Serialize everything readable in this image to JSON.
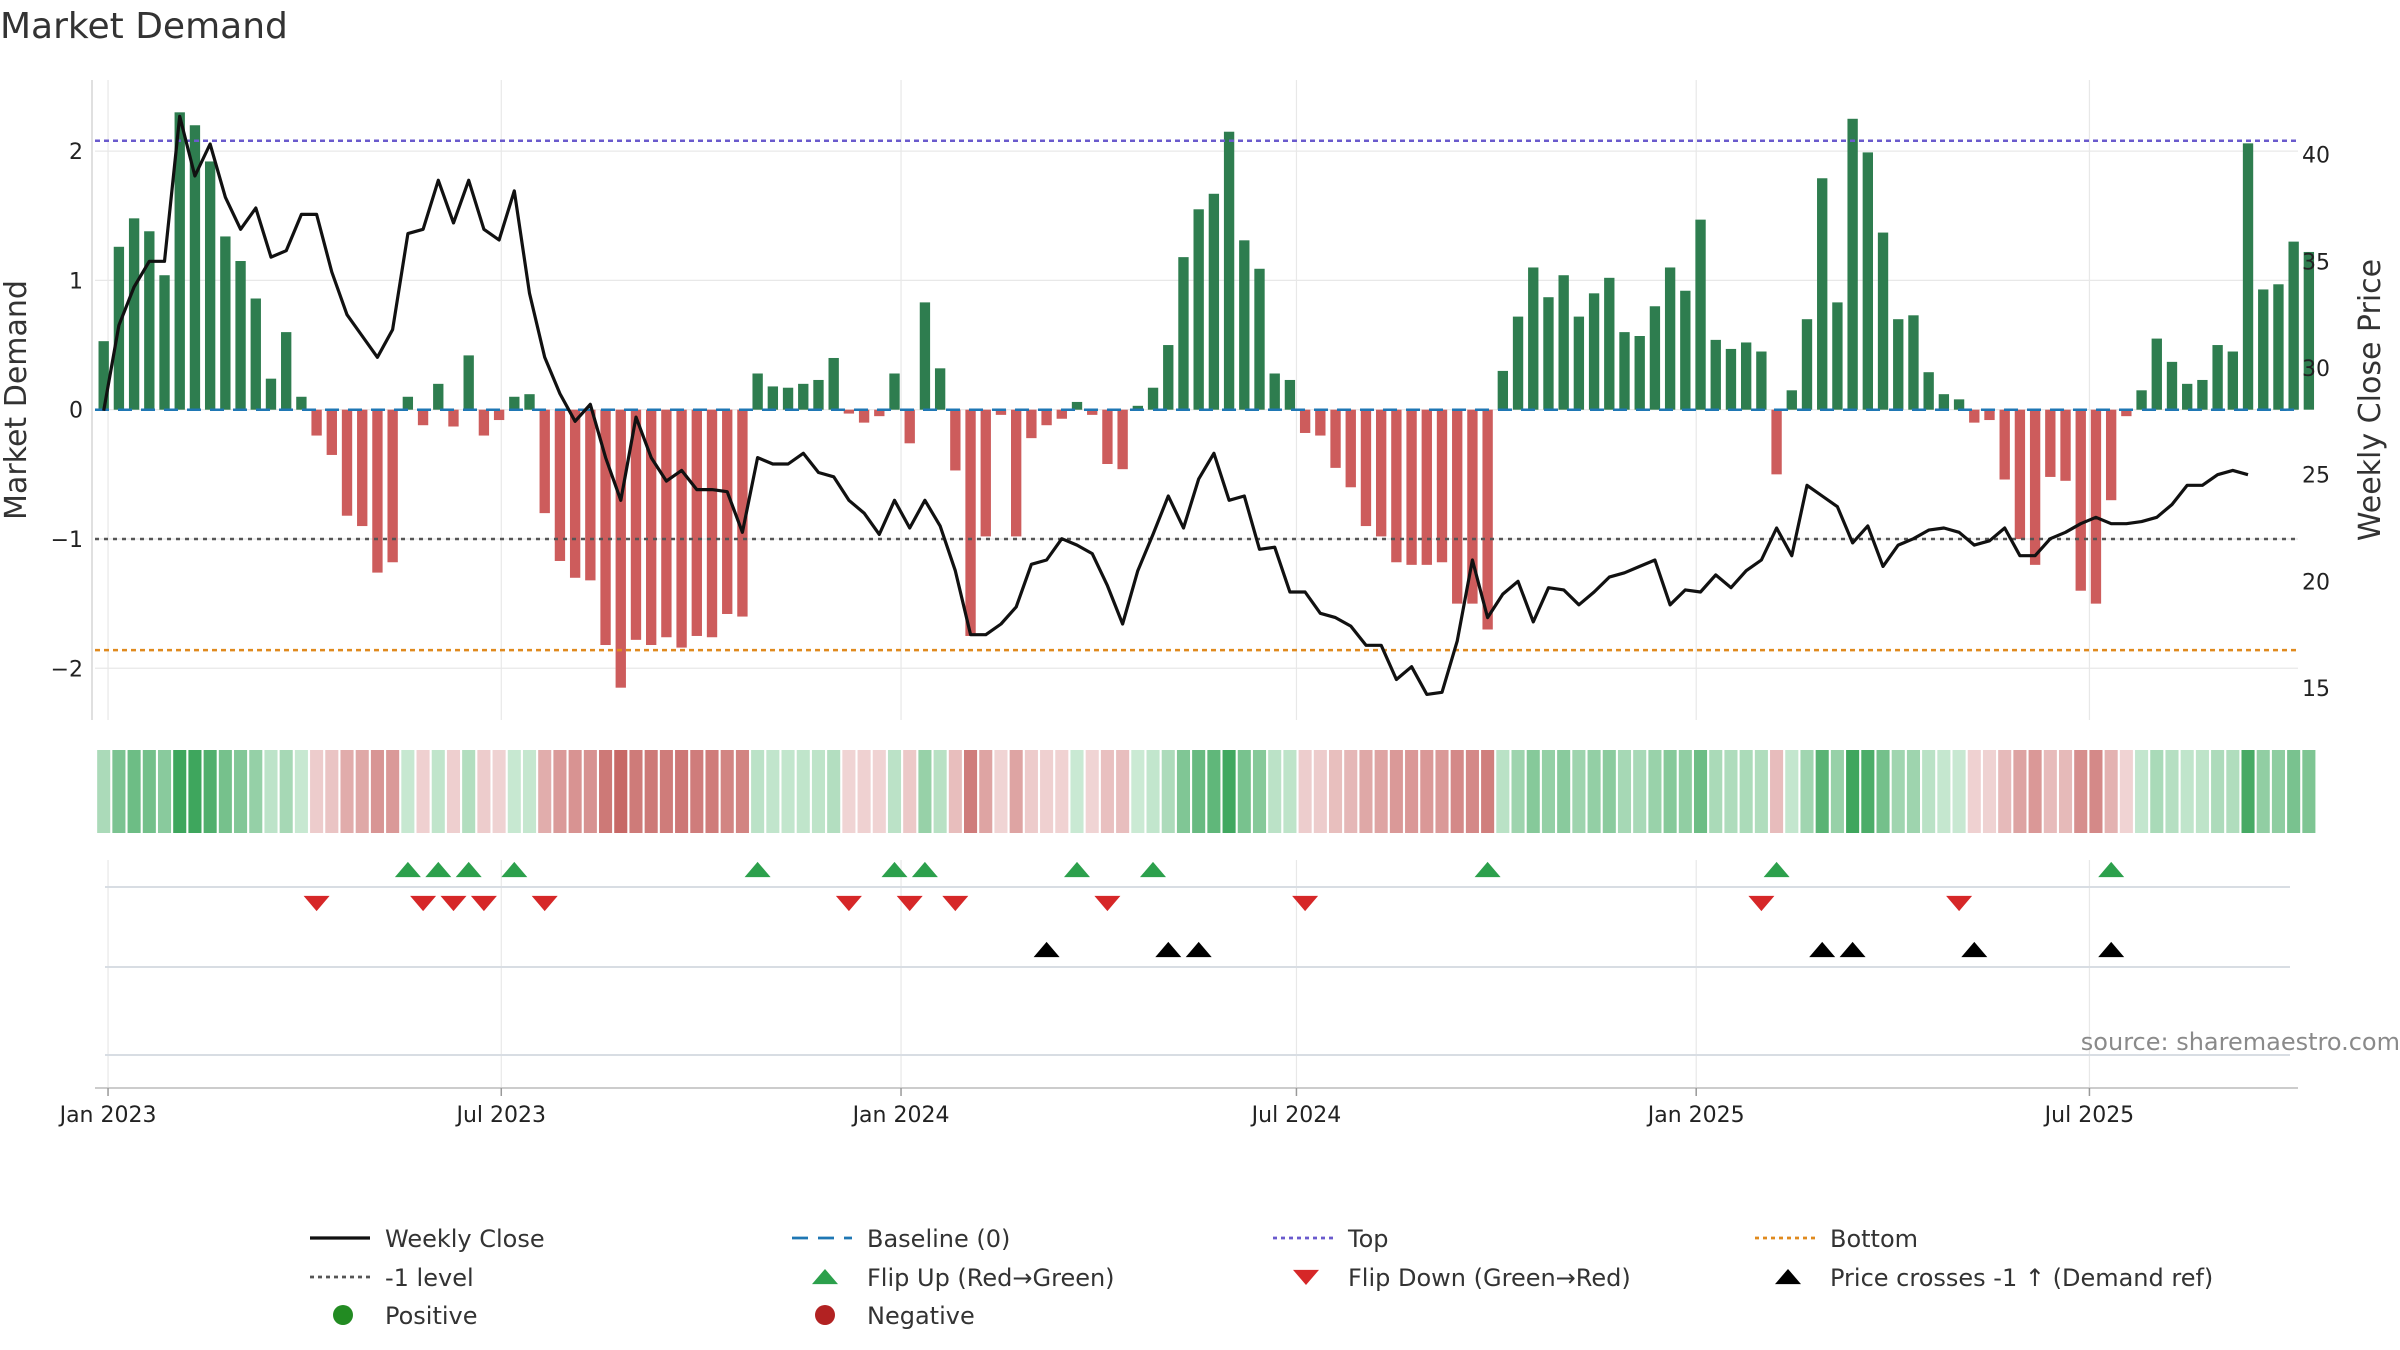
{
  "chart_data": {
    "type": "bar",
    "title": "Market Demand",
    "ylabel": "Market Demand",
    "y2label": "Weekly Close Price",
    "ylim": [
      -2.4,
      2.55
    ],
    "y2lim": [
      13.5,
      43.5
    ],
    "yticks": [
      -2,
      -1,
      0,
      1,
      2
    ],
    "y2ticks": [
      15,
      20,
      25,
      30,
      35,
      40
    ],
    "date_start": "2022-12-26",
    "date_end": "2025-10-05",
    "week_start": "2022-12-30",
    "xticks": [
      {
        "date": "2023-01-01",
        "label": "Jan 2023"
      },
      {
        "date": "2023-07-01",
        "label": "Jul 2023"
      },
      {
        "date": "2024-01-01",
        "label": "Jan 2024"
      },
      {
        "date": "2024-07-01",
        "label": "Jul 2024"
      },
      {
        "date": "2025-01-01",
        "label": "Jan 2025"
      },
      {
        "date": "2025-07-01",
        "label": "Jul 2025"
      }
    ],
    "reference_lines": {
      "top": 2.08,
      "bottom": -1.86,
      "minus_one": -1,
      "baseline": 0
    },
    "demand": [
      0.53,
      1.26,
      1.48,
      1.38,
      1.04,
      2.3,
      2.2,
      1.92,
      1.34,
      1.15,
      0.86,
      0.24,
      0.6,
      0.1,
      -0.2,
      -0.35,
      -0.82,
      -0.9,
      -1.26,
      -1.18,
      0.1,
      -0.12,
      0.2,
      -0.13,
      0.42,
      -0.2,
      -0.08,
      0.1,
      0.12,
      -0.8,
      -1.17,
      -1.3,
      -1.32,
      -1.82,
      -2.15,
      -1.78,
      -1.82,
      -1.76,
      -1.84,
      -1.75,
      -1.76,
      -1.58,
      -1.6,
      0.28,
      0.18,
      0.17,
      0.2,
      0.23,
      0.4,
      -0.03,
      -0.1,
      -0.05,
      0.28,
      -0.26,
      0.83,
      0.32,
      -0.47,
      -1.75,
      -0.98,
      -0.04,
      -0.98,
      -0.22,
      -0.12,
      -0.07,
      0.06,
      -0.04,
      -0.42,
      -0.46,
      0.03,
      0.17,
      0.5,
      1.18,
      1.55,
      1.67,
      2.15,
      1.31,
      1.09,
      0.28,
      0.23,
      -0.18,
      -0.2,
      -0.45,
      -0.6,
      -0.9,
      -0.98,
      -1.18,
      -1.2,
      -1.2,
      -1.18,
      -1.5,
      -1.5,
      -1.7,
      0.3,
      0.72,
      1.1,
      0.87,
      1.04,
      0.72,
      0.9,
      1.02,
      0.6,
      0.57,
      0.8,
      1.1,
      0.92,
      1.47,
      0.54,
      0.47,
      0.52,
      0.45,
      -0.5,
      0.15,
      0.7,
      1.79,
      0.83,
      2.25,
      1.99,
      1.37,
      0.7,
      0.73,
      0.29,
      0.12,
      0.08,
      -0.1,
      -0.08,
      -0.54,
      -1,
      -1.2,
      -0.52,
      -0.55,
      -1.4,
      -1.5,
      -0.7,
      -0.05,
      0.15,
      0.55,
      0.37,
      0.2,
      0.23,
      0.5,
      0.45,
      2.06,
      0.93,
      0.97,
      1.3,
      1.22
    ],
    "price": [
      28,
      32,
      33.8,
      35,
      35,
      41.8,
      39,
      40.5,
      38,
      36.5,
      37.5,
      35.2,
      35.5,
      37.2,
      37.2,
      34.5,
      32.5,
      31.5,
      30.5,
      31.8,
      36.3,
      36.5,
      38.8,
      36.8,
      38.8,
      36.5,
      36,
      38.3,
      33.5,
      30.5,
      28.8,
      27.5,
      28.3,
      25.8,
      23.8,
      27.7,
      25.8,
      24.7,
      25.2,
      24.3,
      24.3,
      24.2,
      22.3,
      25.8,
      25.5,
      25.5,
      26,
      25.1,
      24.9,
      23.8,
      23.2,
      22.2,
      23.8,
      22.5,
      23.8,
      22.6,
      20.5,
      17.5,
      17.5,
      18,
      18.8,
      20.8,
      21,
      22,
      21.7,
      21.3,
      19.8,
      18,
      20.5,
      22.2,
      24,
      22.5,
      24.8,
      26,
      23.8,
      24,
      21.5,
      21.6,
      19.5,
      19.5,
      18.5,
      18.3,
      17.9,
      17,
      17,
      15.4,
      16,
      14.7,
      14.8,
      17.2,
      21,
      18.3,
      19.4,
      20,
      18.1,
      19.7,
      19.6,
      18.9,
      19.5,
      20.2,
      20.4,
      20.7,
      21,
      18.9,
      19.6,
      19.5,
      20.3,
      19.7,
      20.5,
      21,
      22.5,
      21.2,
      24.5,
      24,
      23.5,
      21.8,
      22.6,
      20.7,
      21.7,
      22,
      22.4,
      22.5,
      22.3,
      21.7,
      21.9,
      22.5,
      21.2,
      21.2,
      22,
      22.3,
      22.7,
      23,
      22.7,
      22.7,
      22.8,
      23,
      23.6,
      24.5,
      24.5,
      25,
      25.2,
      25
    ],
    "flip_up_weeks": [
      20,
      22,
      24,
      27,
      43,
      52,
      54,
      64,
      69,
      91,
      110,
      132
    ],
    "flip_down_weeks": [
      14,
      21,
      23,
      25,
      29,
      49,
      53,
      56,
      66,
      79,
      109,
      122
    ],
    "price_cross_weeks": [
      62,
      70,
      72,
      113,
      115,
      123,
      132
    ],
    "legend": [
      {
        "key": "weekly_close",
        "label": "Weekly Close",
        "color": "#111111"
      },
      {
        "key": "baseline",
        "label": "Baseline (0)",
        "color": "#1f77b4"
      },
      {
        "key": "top",
        "label": "Top",
        "color": "#6a5acd"
      },
      {
        "key": "bottom",
        "label": "Bottom",
        "color": "#e08a1e"
      },
      {
        "key": "minus_one",
        "label": "-1 level",
        "color": "#555555"
      },
      {
        "key": "flip_up",
        "label": "Flip Up (Red→Green)",
        "color": "#2ca04c"
      },
      {
        "key": "flip_down",
        "label": "Flip Down (Green→Red)",
        "color": "#d62728"
      },
      {
        "key": "price_cross",
        "label": "Price crosses -1 ↑ (Demand ref)",
        "color": "#000000"
      },
      {
        "key": "positive",
        "label": "Positive",
        "color": "#228b22"
      },
      {
        "key": "negative",
        "label": "Negative",
        "color": "#b22222"
      }
    ],
    "source": "source: sharemaestro.com"
  },
  "colors": {
    "pos_bar": "#2e7d4f",
    "neg_bar": "#cd5c5c",
    "close_line": "#111111",
    "grid": "#e8e8e8",
    "axis": "#cccccc"
  }
}
